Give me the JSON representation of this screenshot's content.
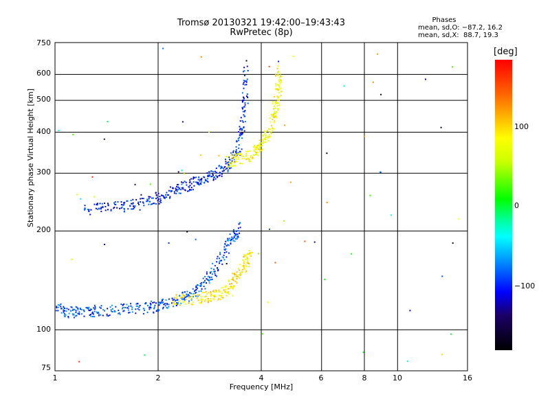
{
  "chart_data": {
    "type": "scatter",
    "title": "Tromsø 20130321 19:42:00–19:43:43",
    "subtitle": "RwPretec (8p)",
    "xlabel": "Frequency [MHz]",
    "ylabel": "Stationary phase Virtual Height [km]",
    "xscale": "log",
    "yscale": "log",
    "xlim": [
      1,
      16
    ],
    "ylim": [
      75,
      750
    ],
    "xticks": [
      "1",
      "2",
      "4",
      "6",
      "8",
      "10",
      "16"
    ],
    "yticks": [
      "75",
      "100",
      "200",
      "300",
      "400",
      "500",
      "600",
      "750"
    ],
    "grid": true,
    "phase_stats": {
      "heading": "Phases",
      "o_mode": "mean, sd,O: −87.2, 16.2",
      "x_mode": "mean, sd,X:  88.7, 19.3"
    },
    "colorbar": {
      "label": "[deg]",
      "ticks": [
        "100",
        "0",
        "−100"
      ],
      "range": [
        -180,
        180
      ]
    },
    "series": [
      {
        "mode": "O",
        "phase_deg": -87.2,
        "trace": [
          [
            1.0,
            116
          ],
          [
            1.1,
            113
          ],
          [
            1.2,
            114
          ],
          [
            1.3,
            114
          ],
          [
            1.5,
            115
          ],
          [
            1.7,
            116
          ],
          [
            1.9,
            117
          ],
          [
            2.1,
            120
          ],
          [
            2.3,
            123
          ],
          [
            2.5,
            128
          ],
          [
            2.7,
            137
          ],
          [
            2.9,
            150
          ],
          [
            3.1,
            170
          ],
          [
            3.3,
            190
          ],
          [
            3.5,
            205
          ]
        ]
      },
      {
        "mode": "X",
        "phase_deg": 88.7,
        "trace": [
          [
            2.2,
            123
          ],
          [
            2.5,
            124
          ],
          [
            2.8,
            126
          ],
          [
            3.0,
            128
          ],
          [
            3.2,
            135
          ],
          [
            3.4,
            145
          ],
          [
            3.6,
            160
          ],
          [
            3.7,
            170
          ]
        ]
      },
      {
        "mode": "O",
        "phase_deg": -100,
        "trace": [
          [
            1.2,
            232
          ],
          [
            1.4,
            234
          ],
          [
            1.6,
            238
          ],
          [
            1.8,
            242
          ],
          [
            2.0,
            252
          ],
          [
            2.2,
            264
          ],
          [
            2.4,
            274
          ],
          [
            2.6,
            284
          ],
          [
            2.8,
            292
          ],
          [
            3.0,
            302
          ],
          [
            3.2,
            318
          ],
          [
            3.4,
            345
          ],
          [
            3.5,
            400
          ],
          [
            3.6,
            500
          ],
          [
            3.6,
            620
          ]
        ]
      },
      {
        "mode": "X",
        "phase_deg": 80,
        "trace": [
          [
            3.2,
            325
          ],
          [
            3.4,
            330
          ],
          [
            3.7,
            340
          ],
          [
            3.9,
            355
          ],
          [
            4.1,
            380
          ],
          [
            4.3,
            420
          ],
          [
            4.4,
            470
          ],
          [
            4.5,
            540
          ],
          [
            4.5,
            620
          ]
        ]
      }
    ]
  }
}
